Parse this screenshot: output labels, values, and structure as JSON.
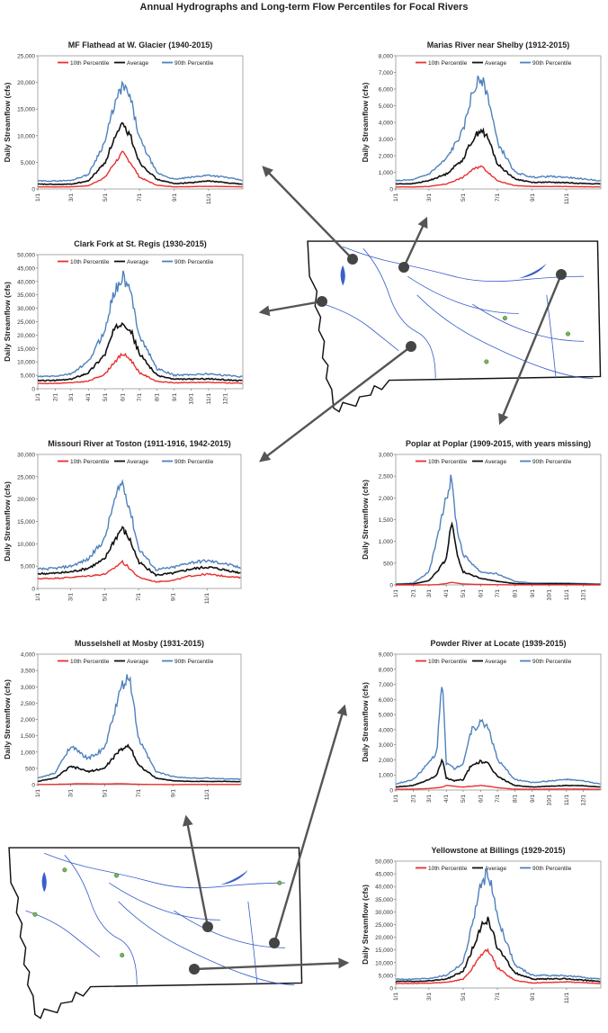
{
  "page": {
    "title": "Annual Hydrographs and Long-term Flow Percentiles for Focal Rivers"
  },
  "colors": {
    "p10": "#e8302f",
    "avg": "#111111",
    "p90": "#4f81bd",
    "river": "#3a5fcd",
    "map_outline": "#111111",
    "arrow": "#555555",
    "marker": "#444444",
    "gauge": "#6abf4b"
  },
  "legend_labels": [
    "10th Percentile",
    "Average",
    "90th Percentile"
  ],
  "chart_data": [
    {
      "id": "mf-flathead",
      "type": "line",
      "title": "MF Flathead at W. Glacier (1940-2015)",
      "ylabel": "Daily Streamflow (cfs)",
      "xlabel": "",
      "ylim": [
        0,
        25000
      ],
      "yticks": [
        "0",
        "5,000",
        "10,000",
        "15,000",
        "20,000",
        "25,000"
      ],
      "xticks": [
        "1/1",
        "3/1",
        "5/1",
        "7/1",
        "9/1",
        "11/1"
      ],
      "x": [
        "1/1",
        "2/1",
        "3/1",
        "4/1",
        "5/1",
        "5/15",
        "6/1",
        "6/15",
        "7/1",
        "8/1",
        "9/1",
        "10/1",
        "11/1",
        "12/1",
        "12/31"
      ],
      "series": [
        {
          "name": "10th Percentile",
          "values": [
            400,
            380,
            400,
            600,
            2200,
            4500,
            6800,
            5000,
            2200,
            700,
            400,
            450,
            500,
            450,
            400
          ]
        },
        {
          "name": "Average",
          "values": [
            900,
            850,
            900,
            1500,
            5000,
            9000,
            12000,
            10000,
            5000,
            1800,
            1000,
            1200,
            1500,
            1200,
            900
          ]
        },
        {
          "name": "90th Percentile",
          "values": [
            1500,
            1500,
            1600,
            2700,
            9000,
            15000,
            19500,
            17000,
            9500,
            3000,
            1800,
            2200,
            2600,
            2200,
            1600
          ]
        }
      ]
    },
    {
      "id": "marias",
      "type": "line",
      "title": "Marias River near Shelby (1912-2015)",
      "ylabel": "Daily Streamflow (cfs)",
      "xlabel": "",
      "ylim": [
        0,
        8000
      ],
      "yticks": [
        "0",
        "1,000",
        "2,000",
        "3,000",
        "4,000",
        "5,000",
        "6,000",
        "7,000",
        "8,000"
      ],
      "xticks": [
        "1/1",
        "3/1",
        "5/1",
        "7/1",
        "9/1",
        "11/1"
      ],
      "x": [
        "1/1",
        "2/1",
        "3/1",
        "4/1",
        "5/1",
        "5/15",
        "6/1",
        "6/15",
        "7/1",
        "8/1",
        "9/1",
        "10/1",
        "11/1",
        "12/1",
        "12/31"
      ],
      "series": [
        {
          "name": "10th Percentile",
          "values": [
            120,
            120,
            150,
            300,
            700,
            1100,
            1400,
            1000,
            500,
            200,
            150,
            150,
            150,
            130,
            120
          ]
        },
        {
          "name": "Average",
          "values": [
            300,
            320,
            500,
            900,
            1800,
            2800,
            3600,
            3000,
            1500,
            600,
            400,
            400,
            380,
            330,
            300
          ]
        },
        {
          "name": "90th Percentile",
          "values": [
            500,
            550,
            900,
            1800,
            3500,
            5500,
            6800,
            5500,
            2800,
            1000,
            700,
            750,
            700,
            600,
            500
          ]
        }
      ]
    },
    {
      "id": "clark-fork",
      "type": "line",
      "title": "Clark Fork at St. Regis (1930-2015)",
      "ylabel": "Daily Streamflow (cfs)",
      "xlabel": "",
      "ylim": [
        0,
        50000
      ],
      "yticks": [
        "0",
        "5,000",
        "10,000",
        "15,000",
        "20,000",
        "25,000",
        "30,000",
        "35,000",
        "40,000",
        "45,000",
        "50,000"
      ],
      "xticks": [
        "1/1",
        "2/1",
        "3/1",
        "4/1",
        "5/1",
        "6/1",
        "7/1",
        "8/1",
        "9/1",
        "10/1",
        "11/1",
        "12/1"
      ],
      "x": [
        "1/1",
        "2/1",
        "3/1",
        "4/1",
        "5/1",
        "5/15",
        "6/1",
        "6/15",
        "7/1",
        "8/1",
        "9/1",
        "10/1",
        "11/1",
        "12/1",
        "12/31"
      ],
      "series": [
        {
          "name": "10th Percentile",
          "values": [
            2000,
            2000,
            2200,
            2800,
            5500,
            9500,
            13000,
            11000,
            6000,
            2700,
            2200,
            2300,
            2400,
            2200,
            2000
          ]
        },
        {
          "name": "Average",
          "values": [
            3000,
            3100,
            3500,
            6000,
            13000,
            21000,
            25500,
            22000,
            13000,
            5000,
            3500,
            3600,
            3700,
            3300,
            3000
          ]
        },
        {
          "name": "90th Percentile",
          "values": [
            4500,
            4700,
            5500,
            10000,
            22000,
            35000,
            42000,
            36000,
            20000,
            7500,
            5000,
            5300,
            5500,
            5000,
            4500
          ]
        }
      ]
    },
    {
      "id": "missouri-toston",
      "type": "line",
      "title": "Missouri River at Toston (1911-1916, 1942-2015)",
      "ylabel": "Daily Streamflow (cfs)",
      "xlabel": "",
      "ylim": [
        0,
        30000
      ],
      "yticks": [
        "0",
        "5,000",
        "10,000",
        "15,000",
        "20,000",
        "25,000",
        "30,000"
      ],
      "xticks": [
        "1/1",
        "3/1",
        "5/1",
        "7/1",
        "9/1",
        "11/1"
      ],
      "x": [
        "1/1",
        "2/1",
        "3/1",
        "4/1",
        "5/1",
        "5/15",
        "6/1",
        "6/15",
        "7/1",
        "8/1",
        "9/1",
        "10/1",
        "11/1",
        "12/1",
        "12/31"
      ],
      "series": [
        {
          "name": "10th Percentile",
          "values": [
            2200,
            2300,
            2500,
            2800,
            3200,
            4200,
            6000,
            4500,
            2500,
            1500,
            1800,
            2800,
            3200,
            2800,
            2400
          ]
        },
        {
          "name": "Average",
          "values": [
            3300,
            3400,
            3700,
            4500,
            6500,
            10000,
            13500,
            11000,
            6000,
            3000,
            3400,
            4300,
            4800,
            4200,
            3500
          ]
        },
        {
          "name": "90th Percentile",
          "values": [
            4300,
            4500,
            5000,
            6500,
            11000,
            18000,
            24000,
            18000,
            9000,
            4200,
            4700,
            5800,
            6200,
            5600,
            4600
          ]
        }
      ]
    },
    {
      "id": "poplar",
      "type": "line",
      "title": "Poplar at Poplar (1909-2015, with years missing)",
      "ylabel": "Daily Streamflow (cfs)",
      "xlabel": "",
      "ylim": [
        0,
        3000
      ],
      "yticks": [
        "0",
        "500",
        "1,000",
        "1,500",
        "2,000",
        "2,500",
        "3,000"
      ],
      "xticks": [
        "1/1",
        "2/1",
        "3/1",
        "4/1",
        "5/1",
        "6/1",
        "7/1",
        "8/1",
        "9/1",
        "10/1",
        "11/1",
        "12/1"
      ],
      "x": [
        "1/1",
        "2/1",
        "3/1",
        "3/15",
        "4/1",
        "4/10",
        "4/20",
        "5/1",
        "6/1",
        "7/1",
        "8/1",
        "9/1",
        "10/1",
        "11/1",
        "12/1",
        "12/31"
      ],
      "series": [
        {
          "name": "10th Percentile",
          "values": [
            0,
            0,
            2,
            5,
            30,
            60,
            40,
            20,
            10,
            5,
            2,
            2,
            2,
            2,
            1,
            0
          ]
        },
        {
          "name": "Average",
          "values": [
            10,
            20,
            100,
            300,
            600,
            1500,
            700,
            300,
            150,
            80,
            30,
            20,
            25,
            25,
            15,
            10
          ]
        },
        {
          "name": "90th Percentile",
          "values": [
            20,
            40,
            300,
            1000,
            2000,
            2450,
            1300,
            700,
            300,
            250,
            80,
            40,
            40,
            40,
            30,
            20
          ]
        }
      ]
    },
    {
      "id": "musselshell",
      "type": "line",
      "title": "Musselshell at Mosby (1931-2015)",
      "ylabel": "Daily Streamflow (cfs)",
      "xlabel": "",
      "ylim": [
        0,
        4000
      ],
      "yticks": [
        "0",
        "500",
        "1,000",
        "1,500",
        "2,000",
        "2,500",
        "3,000",
        "3,500",
        "4,000"
      ],
      "xticks": [
        "1/1",
        "3/1",
        "5/1",
        "7/1",
        "9/1",
        "11/1"
      ],
      "x": [
        "1/1",
        "2/1",
        "3/1",
        "3/15",
        "4/1",
        "5/1",
        "5/15",
        "6/1",
        "6/15",
        "7/1",
        "8/1",
        "9/1",
        "10/1",
        "11/1",
        "12/1",
        "12/31"
      ],
      "series": [
        {
          "name": "10th Percentile",
          "values": [
            5,
            8,
            20,
            30,
            25,
            20,
            25,
            30,
            20,
            10,
            5,
            3,
            5,
            6,
            5,
            5
          ]
        },
        {
          "name": "Average",
          "values": [
            100,
            200,
            550,
            500,
            400,
            500,
            800,
            1100,
            1200,
            600,
            200,
            120,
            100,
            100,
            100,
            90
          ]
        },
        {
          "name": "90th Percentile",
          "values": [
            200,
            350,
            1200,
            1000,
            800,
            1100,
            2000,
            3000,
            3300,
            1400,
            400,
            250,
            200,
            200,
            180,
            170
          ]
        }
      ]
    },
    {
      "id": "powder",
      "type": "line",
      "title": "Powder River at Locate (1939-2015)",
      "ylabel": "Daily Streamflow (cfs)",
      "xlabel": "",
      "ylim": [
        0,
        9000
      ],
      "yticks": [
        "0",
        "1,000",
        "2,000",
        "3,000",
        "4,000",
        "5,000",
        "6,000",
        "7,000",
        "8,000",
        "9,000"
      ],
      "xticks": [
        "1/1",
        "2/1",
        "3/1",
        "4/1",
        "5/1",
        "6/1",
        "7/1",
        "8/1",
        "9/1",
        "10/1",
        "11/1",
        "12/1"
      ],
      "x": [
        "1/1",
        "2/1",
        "3/1",
        "3/15",
        "3/25",
        "4/1",
        "4/15",
        "5/1",
        "5/15",
        "6/1",
        "6/15",
        "7/1",
        "8/1",
        "9/1",
        "10/1",
        "11/1",
        "12/1",
        "12/31"
      ],
      "series": [
        {
          "name": "10th Percentile",
          "values": [
            50,
            60,
            100,
            150,
            200,
            300,
            250,
            200,
            250,
            300,
            250,
            150,
            60,
            50,
            60,
            70,
            60,
            50
          ]
        },
        {
          "name": "Average",
          "values": [
            200,
            300,
            700,
            1000,
            2000,
            800,
            600,
            700,
            1600,
            1900,
            1700,
            900,
            300,
            200,
            250,
            300,
            280,
            200
          ]
        },
        {
          "name": "90th Percentile",
          "values": [
            400,
            700,
            1800,
            2500,
            7700,
            1800,
            1400,
            1800,
            3900,
            4500,
            4200,
            2000,
            700,
            500,
            600,
            700,
            600,
            400
          ]
        }
      ]
    },
    {
      "id": "yellowstone",
      "type": "line",
      "title": "Yellowstone at Billings (1929-2015)",
      "ylabel": "Daily Streamflow (cfs)",
      "xlabel": "",
      "ylim": [
        0,
        50000
      ],
      "yticks": [
        "0",
        "5,000",
        "10,000",
        "15,000",
        "20,000",
        "25,000",
        "30,000",
        "35,000",
        "40,000",
        "45,000",
        "50,000"
      ],
      "xticks": [
        "1/1",
        "3/1",
        "5/1",
        "7/1",
        "9/1",
        "11/1"
      ],
      "x": [
        "1/1",
        "2/1",
        "3/1",
        "4/1",
        "5/1",
        "5/15",
        "6/1",
        "6/15",
        "7/1",
        "8/1",
        "9/1",
        "10/1",
        "11/1",
        "12/1",
        "12/31"
      ],
      "series": [
        {
          "name": "10th Percentile",
          "values": [
            1800,
            1800,
            1900,
            2200,
            3500,
            7000,
            13000,
            15000,
            8000,
            3000,
            2000,
            2200,
            2400,
            2100,
            1800
          ]
        },
        {
          "name": "Average",
          "values": [
            2600,
            2600,
            2800,
            3500,
            6500,
            14000,
            24000,
            27000,
            16000,
            6000,
            3500,
            3600,
            3600,
            3100,
            2600
          ]
        },
        {
          "name": "90th Percentile",
          "values": [
            3500,
            3500,
            3800,
            5000,
            10000,
            23000,
            40000,
            46000,
            28000,
            9000,
            5000,
            5000,
            4800,
            4200,
            3500
          ]
        }
      ]
    }
  ],
  "maps": [
    {
      "id": "map-top",
      "description_hidden": ""
    },
    {
      "id": "map-bottom",
      "description_hidden": ""
    }
  ]
}
